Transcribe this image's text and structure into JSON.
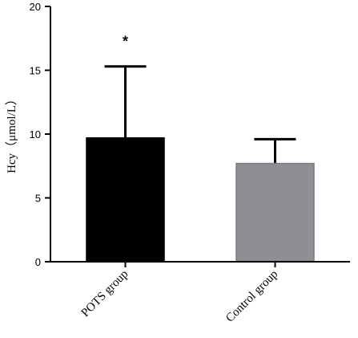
{
  "chart_data": {
    "type": "bar",
    "ylabel": "Hcy（μmol/L）",
    "ylim": [
      0,
      20
    ],
    "yticks": [
      0,
      5,
      10,
      15,
      20
    ],
    "categories": [
      "POTS group",
      "Control group"
    ],
    "values": [
      9.7,
      7.7
    ],
    "errors": [
      5.6,
      1.9
    ],
    "annotations": [
      "*",
      ""
    ],
    "colors": [
      "#000000",
      "#8e8e93"
    ],
    "grid": false
  }
}
